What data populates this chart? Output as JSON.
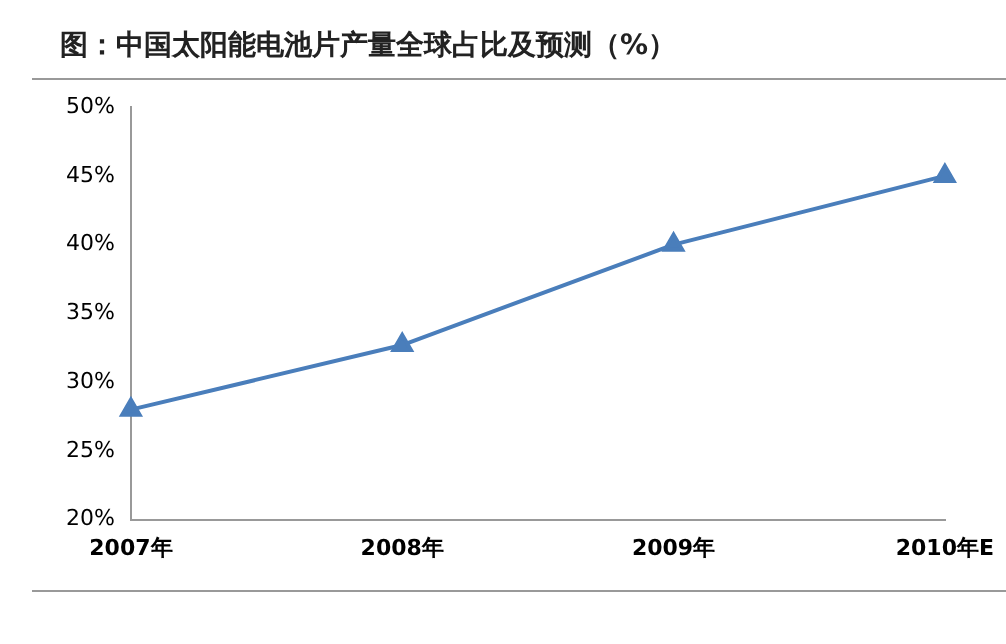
{
  "chart_data": {
    "type": "line",
    "title": "图：中国太阳能电池片产量全球占比及预测（%）",
    "categories": [
      "2007年",
      "2008年",
      "2009年",
      "2010年E"
    ],
    "series": [
      {
        "color": "#4a7ebb",
        "values": [
          28,
          32.7,
          40,
          45
        ]
      }
    ],
    "ylim": [
      20,
      50
    ],
    "yticks": [
      {
        "value": 20,
        "label": "20%"
      },
      {
        "value": 25,
        "label": "25%"
      },
      {
        "value": 30,
        "label": "30%"
      },
      {
        "value": 35,
        "label": "35%"
      },
      {
        "value": 40,
        "label": "40%"
      },
      {
        "value": 45,
        "label": "45%"
      },
      {
        "value": 50,
        "label": "50%"
      }
    ],
    "grid": false,
    "legend": false,
    "marker": "triangle",
    "line_style": "solid"
  }
}
